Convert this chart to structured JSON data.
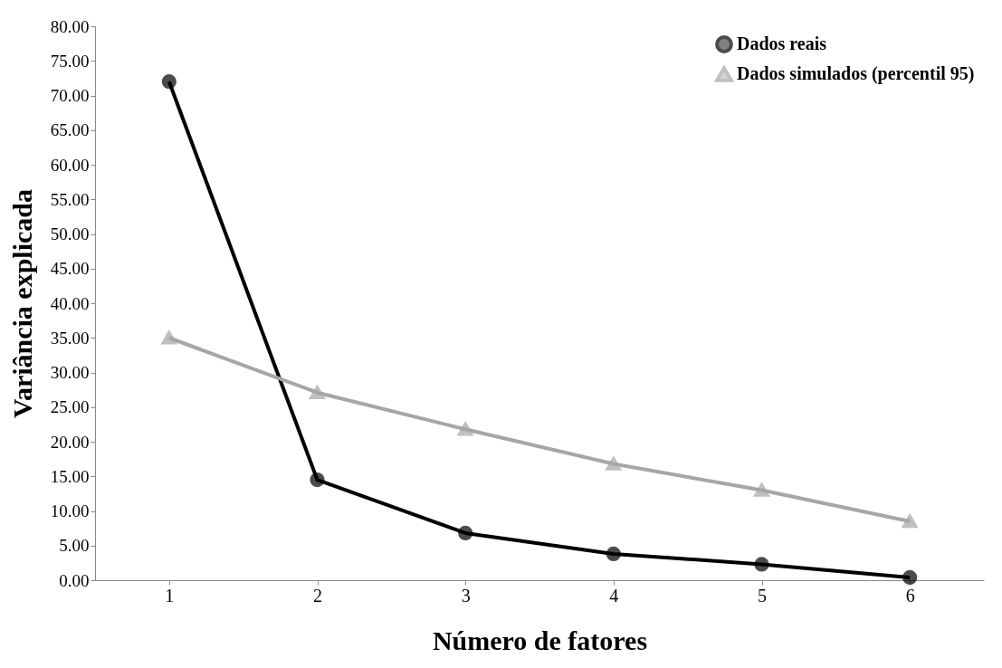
{
  "chart_data": {
    "type": "line",
    "xlabel": "Número de fatores",
    "ylabel": "Variância explicada",
    "categories": [
      "1",
      "2",
      "3",
      "4",
      "5",
      "6"
    ],
    "series": [
      {
        "name": "Dados reais",
        "color": "#000000",
        "marker": "circle",
        "values": [
          72.0,
          14.5,
          6.8,
          3.8,
          2.3,
          0.4
        ]
      },
      {
        "name": "Dados simulados (percentil 95)",
        "color": "#a6a6a6",
        "marker": "triangle",
        "values": [
          35.0,
          27.1,
          21.8,
          16.8,
          13.0,
          8.5
        ]
      }
    ],
    "ylim": [
      0,
      80
    ],
    "yticks": [
      {
        "value": 0,
        "label": "0.00"
      },
      {
        "value": 5,
        "label": "5.00"
      },
      {
        "value": 10,
        "label": "10.00"
      },
      {
        "value": 15,
        "label": "15.00"
      },
      {
        "value": 20,
        "label": "20.00"
      },
      {
        "value": 25,
        "label": "25.00"
      },
      {
        "value": 30,
        "label": "30.00"
      },
      {
        "value": 35,
        "label": "35.00"
      },
      {
        "value": 40,
        "label": "40.00"
      },
      {
        "value": 45,
        "label": "45.00"
      },
      {
        "value": 50,
        "label": "50.00"
      },
      {
        "value": 55,
        "label": "55.00"
      },
      {
        "value": 60,
        "label": "60.00"
      },
      {
        "value": 65,
        "label": "65.00"
      },
      {
        "value": 70,
        "label": "70.00"
      },
      {
        "value": 75,
        "label": "75.00"
      },
      {
        "value": 80,
        "label": "80.00"
      }
    ],
    "grid": false,
    "legend": "top right",
    "line_style": "solid"
  }
}
